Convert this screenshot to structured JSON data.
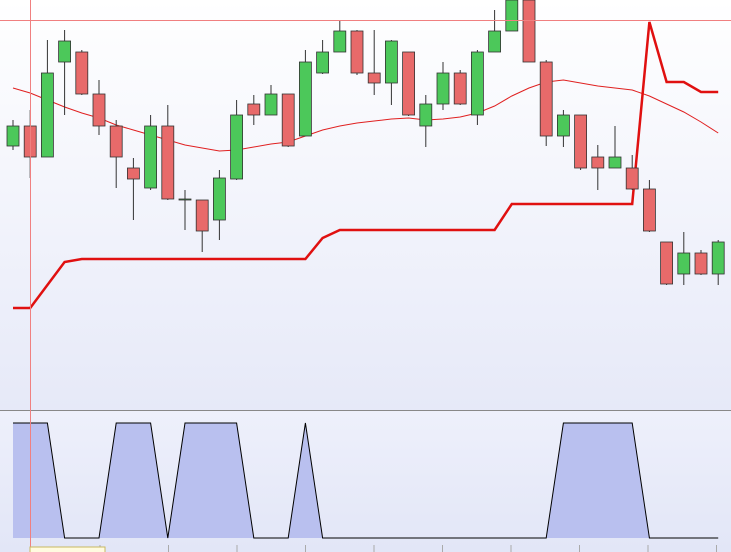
{
  "chart_data": {
    "type": "candlestick",
    "ylim": [
      0,
      410
    ],
    "open": [
      264,
      284,
      253,
      348,
      358,
      316,
      284,
      242,
      222,
      284,
      210,
      210,
      190,
      231,
      306,
      295,
      316,
      274,
      337,
      358,
      379,
      337,
      327,
      358,
      284,
      306,
      337,
      295,
      358,
      379,
      410,
      348,
      274,
      295,
      253,
      242,
      242,
      221,
      168,
      136,
      157,
      136
    ],
    "high": [
      290,
      300,
      370,
      380,
      360,
      330,
      290,
      252,
      295,
      305,
      220,
      210,
      240,
      310,
      315,
      325,
      316,
      360,
      370,
      390,
      380,
      380,
      370,
      358,
      315,
      348,
      340,
      360,
      400,
      410,
      410,
      350,
      300,
      295,
      265,
      284,
      255,
      230,
      168,
      178,
      160,
      170
    ],
    "low": [
      260,
      232,
      253,
      295,
      315,
      275,
      222,
      190,
      220,
      210,
      180,
      158,
      170,
      230,
      285,
      295,
      263,
      274,
      336,
      358,
      335,
      315,
      305,
      294,
      263,
      300,
      305,
      285,
      358,
      379,
      348,
      264,
      263,
      240,
      220,
      242,
      220,
      178,
      125,
      125,
      135,
      125
    ],
    "close": [
      284,
      253,
      337,
      369,
      316,
      284,
      253,
      231,
      284,
      211,
      211,
      179,
      232,
      295,
      295,
      316,
      264,
      348,
      358,
      379,
      337,
      327,
      369,
      295,
      306,
      337,
      306,
      358,
      379,
      410,
      348,
      274,
      295,
      242,
      242,
      253,
      221,
      179,
      126,
      157,
      136,
      168
    ],
    "up_color": "#4cc85a",
    "down_color": "#e86a6a",
    "overlays": [
      {
        "color": "#e02020",
        "width": 1,
        "values": [
          322,
          317,
          310,
          303,
          297,
          292,
          285,
          280,
          275,
          270,
          265,
          262,
          259,
          260,
          263,
          266,
          268,
          274,
          280,
          284,
          287,
          289,
          291,
          292,
          290,
          291,
          293,
          297,
          304,
          314,
          322,
          328,
          330,
          327,
          324,
          322,
          320,
          314,
          306,
          298,
          288,
          277
        ]
      },
      {
        "color": "#e01010",
        "width": 2.5,
        "values": [
          102,
          102,
          125,
          148,
          151,
          151,
          151,
          151,
          151,
          151,
          151,
          151,
          151,
          151,
          151,
          151,
          151,
          151,
          172,
          180,
          180,
          180,
          180,
          180,
          180,
          180,
          180,
          180,
          180,
          206,
          206,
          206,
          206,
          206,
          206,
          206,
          206,
          388,
          328,
          328,
          318,
          318
        ]
      }
    ],
    "oscillator": {
      "ylim": [
        0,
        1
      ],
      "color": "#b9c0ef",
      "values": [
        1,
        1,
        1,
        0,
        0,
        0,
        1,
        1,
        1,
        0,
        1,
        1,
        1,
        1,
        0,
        0,
        0,
        1,
        0,
        0,
        0,
        0,
        0,
        0,
        0,
        0,
        0,
        0,
        0,
        0,
        0,
        0,
        1,
        1,
        1,
        1,
        1,
        0,
        0,
        0,
        0,
        0
      ]
    }
  }
}
